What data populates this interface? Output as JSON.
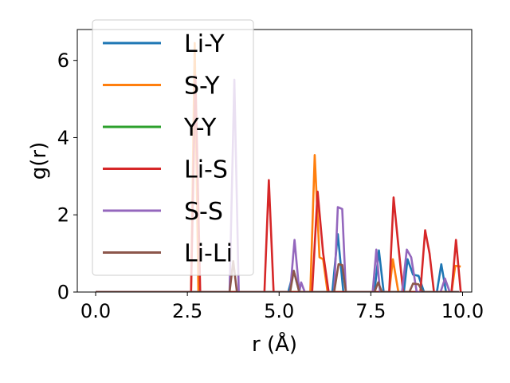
{
  "chart_data": {
    "type": "line",
    "xlabel": "r (Å)",
    "ylabel": "g(r)",
    "xlim": [
      -0.5,
      10.25
    ],
    "ylim": [
      0,
      6.8
    ],
    "xticks": [
      0.0,
      2.5,
      5.0,
      7.5,
      10.0
    ],
    "xtick_labels": [
      "0.0",
      "2.5",
      "5.0",
      "7.5",
      "10.0"
    ],
    "yticks": [
      0,
      2,
      4,
      6
    ],
    "ytick_labels": [
      "0",
      "2",
      "4",
      "6"
    ],
    "grid": false,
    "legend_position": "top-left",
    "series": [
      {
        "name": "Li-Y",
        "color": "#1f77b4",
        "points": [
          [
            0.0,
            0
          ],
          [
            5.25,
            0
          ],
          [
            5.4,
            0.55
          ],
          [
            5.55,
            0
          ],
          [
            6.45,
            0
          ],
          [
            6.6,
            1.5
          ],
          [
            6.75,
            0
          ],
          [
            7.6,
            0
          ],
          [
            7.72,
            1.08
          ],
          [
            7.85,
            0
          ],
          [
            8.4,
            0
          ],
          [
            8.5,
            0.85
          ],
          [
            8.65,
            0.45
          ],
          [
            8.8,
            0.42
          ],
          [
            8.95,
            0
          ],
          [
            9.3,
            0
          ],
          [
            9.42,
            0.72
          ],
          [
            9.55,
            0
          ],
          [
            9.9,
            0
          ]
        ]
      },
      {
        "name": "S-Y",
        "color": "#ff7f0e",
        "points": [
          [
            0.0,
            0
          ],
          [
            2.6,
            0
          ],
          [
            2.7,
            6.45
          ],
          [
            2.8,
            0
          ],
          [
            5.85,
            0
          ],
          [
            5.97,
            3.55
          ],
          [
            6.1,
            0.9
          ],
          [
            6.2,
            0.85
          ],
          [
            6.32,
            0
          ],
          [
            8.0,
            0
          ],
          [
            8.1,
            0.85
          ],
          [
            8.25,
            0
          ],
          [
            9.7,
            0
          ],
          [
            9.8,
            0.68
          ],
          [
            9.95,
            0.66
          ]
        ]
      },
      {
        "name": "Y-Y",
        "color": "#2ca02c",
        "points": [
          [
            0.0,
            0
          ],
          [
            9.9,
            0
          ]
        ]
      },
      {
        "name": "Li-S",
        "color": "#d62728",
        "points": [
          [
            0.0,
            0
          ],
          [
            2.6,
            0
          ],
          [
            2.72,
            5.6
          ],
          [
            2.85,
            0
          ],
          [
            4.6,
            0
          ],
          [
            4.72,
            2.9
          ],
          [
            4.85,
            0
          ],
          [
            5.9,
            0
          ],
          [
            6.05,
            2.6
          ],
          [
            6.2,
            1.0
          ],
          [
            6.35,
            0
          ],
          [
            8.0,
            0
          ],
          [
            8.12,
            2.45
          ],
          [
            8.25,
            1.2
          ],
          [
            8.38,
            0
          ],
          [
            8.85,
            0
          ],
          [
            8.98,
            1.6
          ],
          [
            9.1,
            1.0
          ],
          [
            9.22,
            0
          ],
          [
            9.7,
            0
          ],
          [
            9.82,
            1.35
          ],
          [
            9.95,
            0
          ]
        ]
      },
      {
        "name": "S-S",
        "color": "#9467bd",
        "points": [
          [
            0.0,
            0
          ],
          [
            3.65,
            0
          ],
          [
            3.78,
            5.5
          ],
          [
            3.9,
            0
          ],
          [
            5.3,
            0
          ],
          [
            5.42,
            1.35
          ],
          [
            5.55,
            0
          ],
          [
            5.6,
            0.25
          ],
          [
            5.7,
            0
          ],
          [
            6.5,
            0
          ],
          [
            6.6,
            2.2
          ],
          [
            6.72,
            2.15
          ],
          [
            6.82,
            0
          ],
          [
            7.55,
            0
          ],
          [
            7.65,
            1.1
          ],
          [
            7.75,
            0
          ],
          [
            8.35,
            0
          ],
          [
            8.48,
            1.1
          ],
          [
            8.6,
            0.9
          ],
          [
            8.75,
            0
          ],
          [
            9.4,
            0
          ],
          [
            9.52,
            0.35
          ],
          [
            9.65,
            0
          ],
          [
            9.9,
            0
          ]
        ]
      },
      {
        "name": "Li-Li",
        "color": "#8c564b",
        "points": [
          [
            0.0,
            0
          ],
          [
            3.65,
            0
          ],
          [
            3.75,
            0.8
          ],
          [
            3.85,
            0
          ],
          [
            5.3,
            0
          ],
          [
            5.4,
            0.55
          ],
          [
            5.55,
            0
          ],
          [
            6.5,
            0
          ],
          [
            6.62,
            0.72
          ],
          [
            6.72,
            0.7
          ],
          [
            6.82,
            0
          ],
          [
            7.6,
            0
          ],
          [
            7.7,
            0.25
          ],
          [
            7.8,
            0
          ],
          [
            8.55,
            0
          ],
          [
            8.65,
            0.22
          ],
          [
            8.8,
            0.2
          ],
          [
            8.92,
            0
          ],
          [
            9.9,
            0
          ]
        ]
      }
    ]
  }
}
